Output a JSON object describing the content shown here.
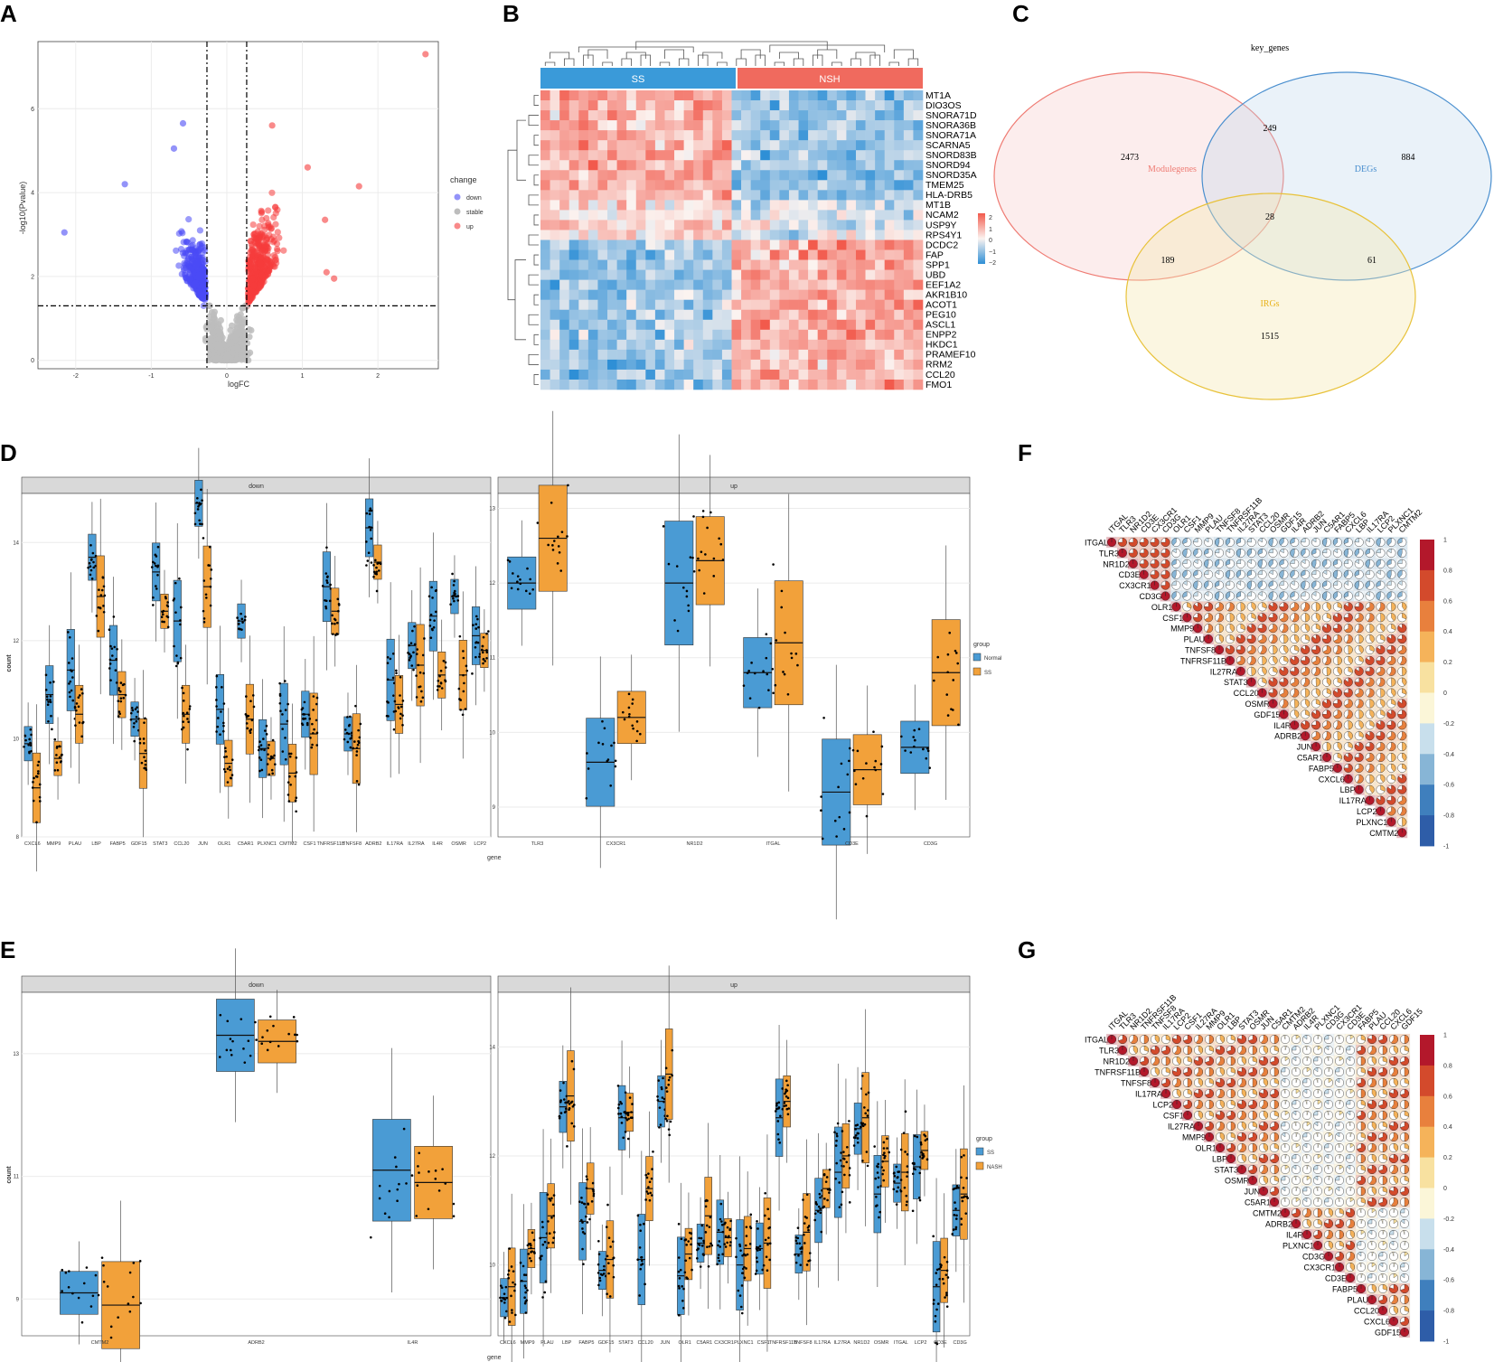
{
  "panels": {
    "a": "A",
    "b": "B",
    "c": "C",
    "d": "D",
    "e": "E",
    "f": "F",
    "g": "G"
  },
  "colors": {
    "down": "#4b4bf5",
    "stable": "#bdbdbd",
    "up": "#f53c3c",
    "blue": "#4a9bd4",
    "orange": "#f2a13a",
    "ss_bar": "#3a9ad9",
    "nsh_bar": "#f06a5e"
  },
  "chart_data": [
    {
      "id": "A",
      "type": "scatter",
      "title": "",
      "xlabel": "logFC",
      "ylabel": "-log10(Pvalue)",
      "xticks": [
        "-2",
        "-1",
        "0",
        "1",
        "2"
      ],
      "yticks": [
        "0",
        "2",
        "4",
        "6"
      ],
      "xlim": [
        -2.5,
        2.8
      ],
      "ylim": [
        -0.2,
        7.6
      ],
      "thresholds": {
        "logFC": [
          -0.263,
          0.263
        ],
        "pvalue": 1.3
      },
      "legend": {
        "title": "change",
        "items": [
          "down",
          "stable",
          "up"
        ]
      },
      "outliers": [
        [
          2.63,
          7.3
        ],
        [
          -2.15,
          3.05
        ],
        [
          -1.35,
          4.2
        ],
        [
          -0.58,
          5.65
        ],
        [
          1.75,
          4.15
        ],
        [
          1.3,
          3.35
        ],
        [
          1.32,
          2.1
        ],
        [
          1.42,
          1.95
        ],
        [
          -0.7,
          5.05
        ],
        [
          0.6,
          5.6
        ],
        [
          1.07,
          4.6
        ]
      ]
    },
    {
      "id": "B",
      "type": "heatmap",
      "groups": [
        "SS",
        "NSH"
      ],
      "genes": [
        "MT1A",
        "DIO3OS",
        "SNORA71D",
        "SNORA36B",
        "SNORA71A",
        "SCARNA5",
        "SNORD83B",
        "SNORD94",
        "SNORD35A",
        "TMEM25",
        "HLA-DRB5",
        "MT1B",
        "NCAM2",
        "USP9Y",
        "RPS4Y1",
        "DCDC2",
        "FAP",
        "SPP1",
        "UBD",
        "EEF1A2",
        "AKR1B10",
        "ACOT1",
        "PEG10",
        "ASCL1",
        "ENPP2",
        "HKDC1",
        "PRAMEF10",
        "RRM2",
        "CCL20",
        "FMO1"
      ],
      "scale": [
        "2",
        "1",
        "0",
        "−1",
        "−2"
      ]
    },
    {
      "id": "C",
      "type": "venn",
      "title": "key_genes",
      "sets": [
        "Modulegenes",
        "DEGs",
        "IRGs"
      ],
      "regions": {
        "module_only": "2473",
        "degs_only": "884",
        "irgs_only": "1515",
        "module_degs": "249",
        "module_irgs": "189",
        "degs_irgs": "61",
        "all": "28"
      }
    },
    {
      "id": "D",
      "type": "box",
      "ylabel": "count",
      "xlabel": "gene",
      "legend": {
        "title": "group",
        "items": [
          "Normal",
          "SS"
        ]
      },
      "facets": [
        {
          "title": "down",
          "yticks": [
            "8",
            "10",
            "12",
            "14"
          ],
          "ylim": [
            8,
            15
          ],
          "genes": [
            "CXCL6",
            "MMP9",
            "PLAU",
            "LBP",
            "FABP5",
            "GDF15",
            "STAT3",
            "CCL20",
            "JUN",
            "OLR1",
            "C5AR1",
            "PLXNC1",
            "CMTM2",
            "CSF1",
            "TNFRSF11B",
            "TNFSF8",
            "ADRB2",
            "IL17RA",
            "IL27RA",
            "IL4R",
            "OSMR",
            "LCP2"
          ],
          "a": [
            9.9,
            10.9,
            11.4,
            13.7,
            11.6,
            10.4,
            13.4,
            12.4,
            14.8,
            10.6,
            12.4,
            9.8,
            10.3,
            10.5,
            13.1,
            10.1,
            14.3,
            11.2,
            11.9,
            12.5,
            12.9,
            12.1
          ],
          "b": [
            9.0,
            9.6,
            10.5,
            12.9,
            10.9,
            9.7,
            12.6,
            10.5,
            13.1,
            9.5,
            10.4,
            9.6,
            9.3,
            10.1,
            12.6,
            9.8,
            13.6,
            10.7,
            11.5,
            11.3,
            11.3,
            11.8
          ]
        },
        {
          "title": "up",
          "yticks": [
            "9",
            "10",
            "11",
            "12",
            "13"
          ],
          "ylim": [
            8.6,
            13.2
          ],
          "genes": [
            "TLR3",
            "CX3CR1",
            "NR1D2",
            "ITGAL",
            "CD3E",
            "CD3G"
          ],
          "a": [
            12.0,
            9.6,
            12.0,
            10.8,
            9.2,
            9.8
          ],
          "b": [
            12.6,
            10.2,
            12.3,
            11.2,
            9.5,
            10.8
          ]
        }
      ]
    },
    {
      "id": "E",
      "type": "box",
      "ylabel": "count",
      "xlabel": "gene",
      "legend": {
        "title": "group",
        "items": [
          "SS",
          "NASH"
        ]
      },
      "facets": [
        {
          "title": "down",
          "yticks": [
            "9",
            "11",
            "13"
          ],
          "ylim": [
            8.4,
            14.0
          ],
          "genes": [
            "CMTM2",
            "ADRB2",
            "IL4R"
          ],
          "a": [
            9.1,
            13.3,
            11.1
          ],
          "b": [
            8.9,
            13.2,
            10.9
          ]
        },
        {
          "title": "up",
          "yticks": [
            "10",
            "12",
            "14"
          ],
          "ylim": [
            8.7,
            15.0
          ],
          "genes": [
            "CXCL6",
            "MMP9",
            "PLAU",
            "LBP",
            "FABP5",
            "GDF15",
            "STAT3",
            "CCL20",
            "JUN",
            "OLR1",
            "C5AR1",
            "CX3CR1",
            "PLXNC1",
            "CSF1",
            "TNFRSF11B",
            "TNFSF8",
            "IL17RA",
            "IL27RA",
            "NR1D2",
            "OSMR",
            "ITGAL",
            "LCP2",
            "CD3E",
            "CD3G"
          ],
          "a": [
            9.4,
            9.7,
            10.5,
            12.9,
            10.8,
            9.9,
            12.7,
            10.1,
            13.0,
            9.8,
            10.4,
            10.6,
            10.0,
            10.3,
            12.7,
            10.2,
            11.0,
            11.7,
            12.5,
            11.3,
            11.5,
            11.8,
            9.6,
            11.0
          ],
          "b": [
            9.6,
            10.3,
            10.9,
            13.1,
            11.4,
            10.1,
            12.8,
            11.4,
            13.5,
            10.2,
            10.9,
            10.5,
            10.3,
            10.4,
            13.0,
            10.6,
            11.4,
            12.0,
            12.7,
            11.9,
            11.7,
            12.1,
            9.9,
            11.3
          ]
        }
      ]
    },
    {
      "id": "F",
      "type": "correlation",
      "genes": [
        "ITGAL",
        "TLR3",
        "NR1D2",
        "CD3E",
        "CX3CR1",
        "CD3G",
        "OLR1",
        "CSF1",
        "MMP9",
        "PLAU",
        "TNFSF8",
        "TNFRSF11B",
        "IL27RA",
        "STAT3",
        "CCL20",
        "OSMR",
        "GDF15",
        "IL4R",
        "ADRB2",
        "JUN",
        "C5AR1",
        "FABP5",
        "CXCL6",
        "LBP",
        "IL17RA",
        "LCP2",
        "PLXNC1",
        "CMTM2"
      ],
      "scale": [
        "1",
        "0.8",
        "0.6",
        "0.4",
        "0.2",
        "0",
        "-0.2",
        "-0.4",
        "-0.6",
        "-0.8",
        "-1"
      ]
    },
    {
      "id": "G",
      "type": "correlation",
      "genes": [
        "ITGAL",
        "TLR3",
        "NR1D2",
        "TNFRSF11B",
        "TNFSF8",
        "IL17RA",
        "LCP2",
        "CSF1",
        "IL27RA",
        "MMP9",
        "OLR1",
        "LBP",
        "STAT3",
        "OSMR",
        "JUN",
        "C5AR1",
        "CMTM2",
        "ADRB2",
        "IL4R",
        "PLXNC1",
        "CD3G",
        "CX3CR1",
        "CD3E",
        "FABP5",
        "PLAU",
        "CCL20",
        "CXCL6",
        "GDF15"
      ],
      "scale": [
        "1",
        "0.8",
        "0.6",
        "0.4",
        "0.2",
        "0",
        "-0.2",
        "-0.4",
        "-0.6",
        "-0.8",
        "-1"
      ]
    }
  ]
}
